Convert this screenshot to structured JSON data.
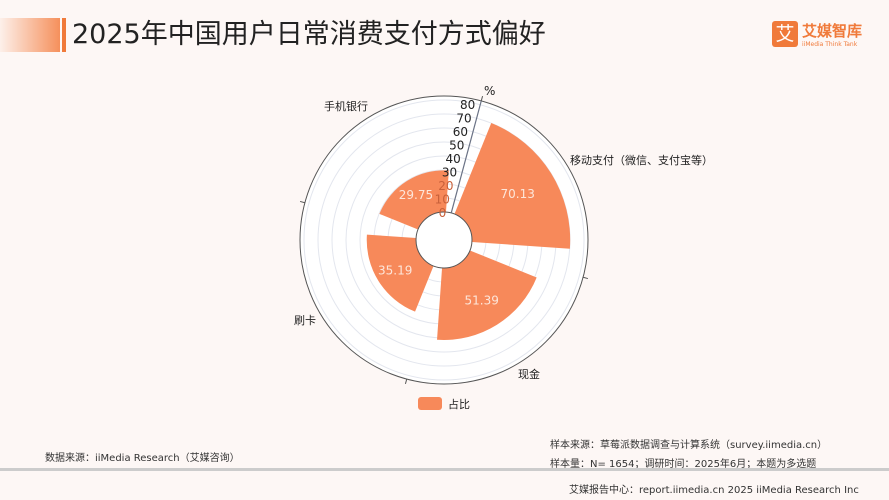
{
  "header": {
    "title": "2025年中国用户日常消费支付方式偏好",
    "logo_mark": "艾",
    "logo_name": "艾媒智库",
    "logo_sub": "iiMedia Think Tank"
  },
  "chart_data": {
    "type": "polar-bar",
    "unit": "%",
    "categories": [
      "移动支付（微信、支付宝等）",
      "现金",
      "刷卡",
      "手机银行"
    ],
    "series": [
      {
        "name": "占比",
        "values": [
          70.13,
          51.39,
          35.19,
          29.75
        ]
      }
    ],
    "rlim": [
      0,
      80
    ],
    "ticks": [
      0,
      10,
      20,
      30,
      40,
      50,
      60,
      70,
      80
    ],
    "color": "#f7895a",
    "legend": "bottom",
    "grid": true
  },
  "footer": {
    "data_source": "数据来源：iiMedia Research（艾媒咨询）",
    "sample_source": "样本来源：草莓派数据调查与计算系统（survey.iimedia.cn）",
    "sample_size": "样本量：N= 1654；调研时间：2025年6月；本题为多选题",
    "report_center": "艾媒报告中心：report.iimedia.cn   2025 iiMedia Research Inc"
  }
}
